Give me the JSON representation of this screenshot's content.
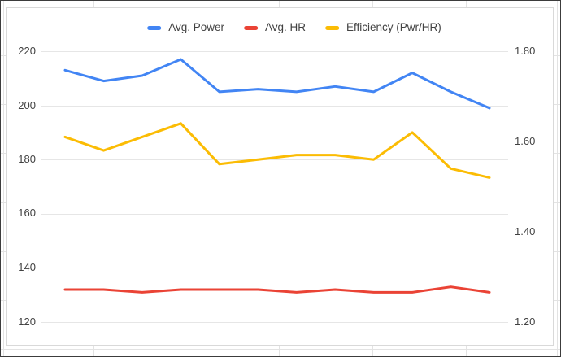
{
  "legend": {
    "items": [
      {
        "label": "Avg. Power",
        "color": "#4285F4"
      },
      {
        "label": "Avg. HR",
        "color": "#EA4335"
      },
      {
        "label": "Efficiency (Pwr/HR)",
        "color": "#FBBC04"
      }
    ]
  },
  "left_axis": {
    "ticks": [
      "220",
      "200",
      "180",
      "160",
      "140",
      "120"
    ]
  },
  "right_axis": {
    "ticks": [
      "1.80",
      "1.60",
      "1.40",
      "1.20"
    ]
  },
  "chart_data": {
    "type": "line",
    "title": "",
    "x_labels_visible": false,
    "num_points": 12,
    "grid": true,
    "legend_position": "top",
    "left_axis": {
      "min": 120,
      "max": 220,
      "tick_step": 20,
      "ticks": [
        220,
        200,
        180,
        160,
        140,
        120
      ]
    },
    "right_axis": {
      "min": 1.2,
      "max": 1.8,
      "tick_step": 0.2,
      "ticks": [
        1.8,
        1.6,
        1.4,
        1.2
      ]
    },
    "series": [
      {
        "name": "Avg. Power",
        "color": "#4285F4",
        "axis": "left",
        "values": [
          213,
          209,
          211,
          217,
          205,
          206,
          205,
          207,
          205,
          212,
          205,
          199
        ]
      },
      {
        "name": "Avg. HR",
        "color": "#EA4335",
        "axis": "left",
        "values": [
          132,
          132,
          131,
          132,
          132,
          132,
          131,
          132,
          131,
          131,
          133,
          131
        ]
      },
      {
        "name": "Efficiency (Pwr/HR)",
        "color": "#FBBC04",
        "axis": "right",
        "values": [
          1.61,
          1.58,
          1.61,
          1.64,
          1.55,
          1.56,
          1.57,
          1.57,
          1.56,
          1.62,
          1.54,
          1.52
        ]
      }
    ]
  }
}
